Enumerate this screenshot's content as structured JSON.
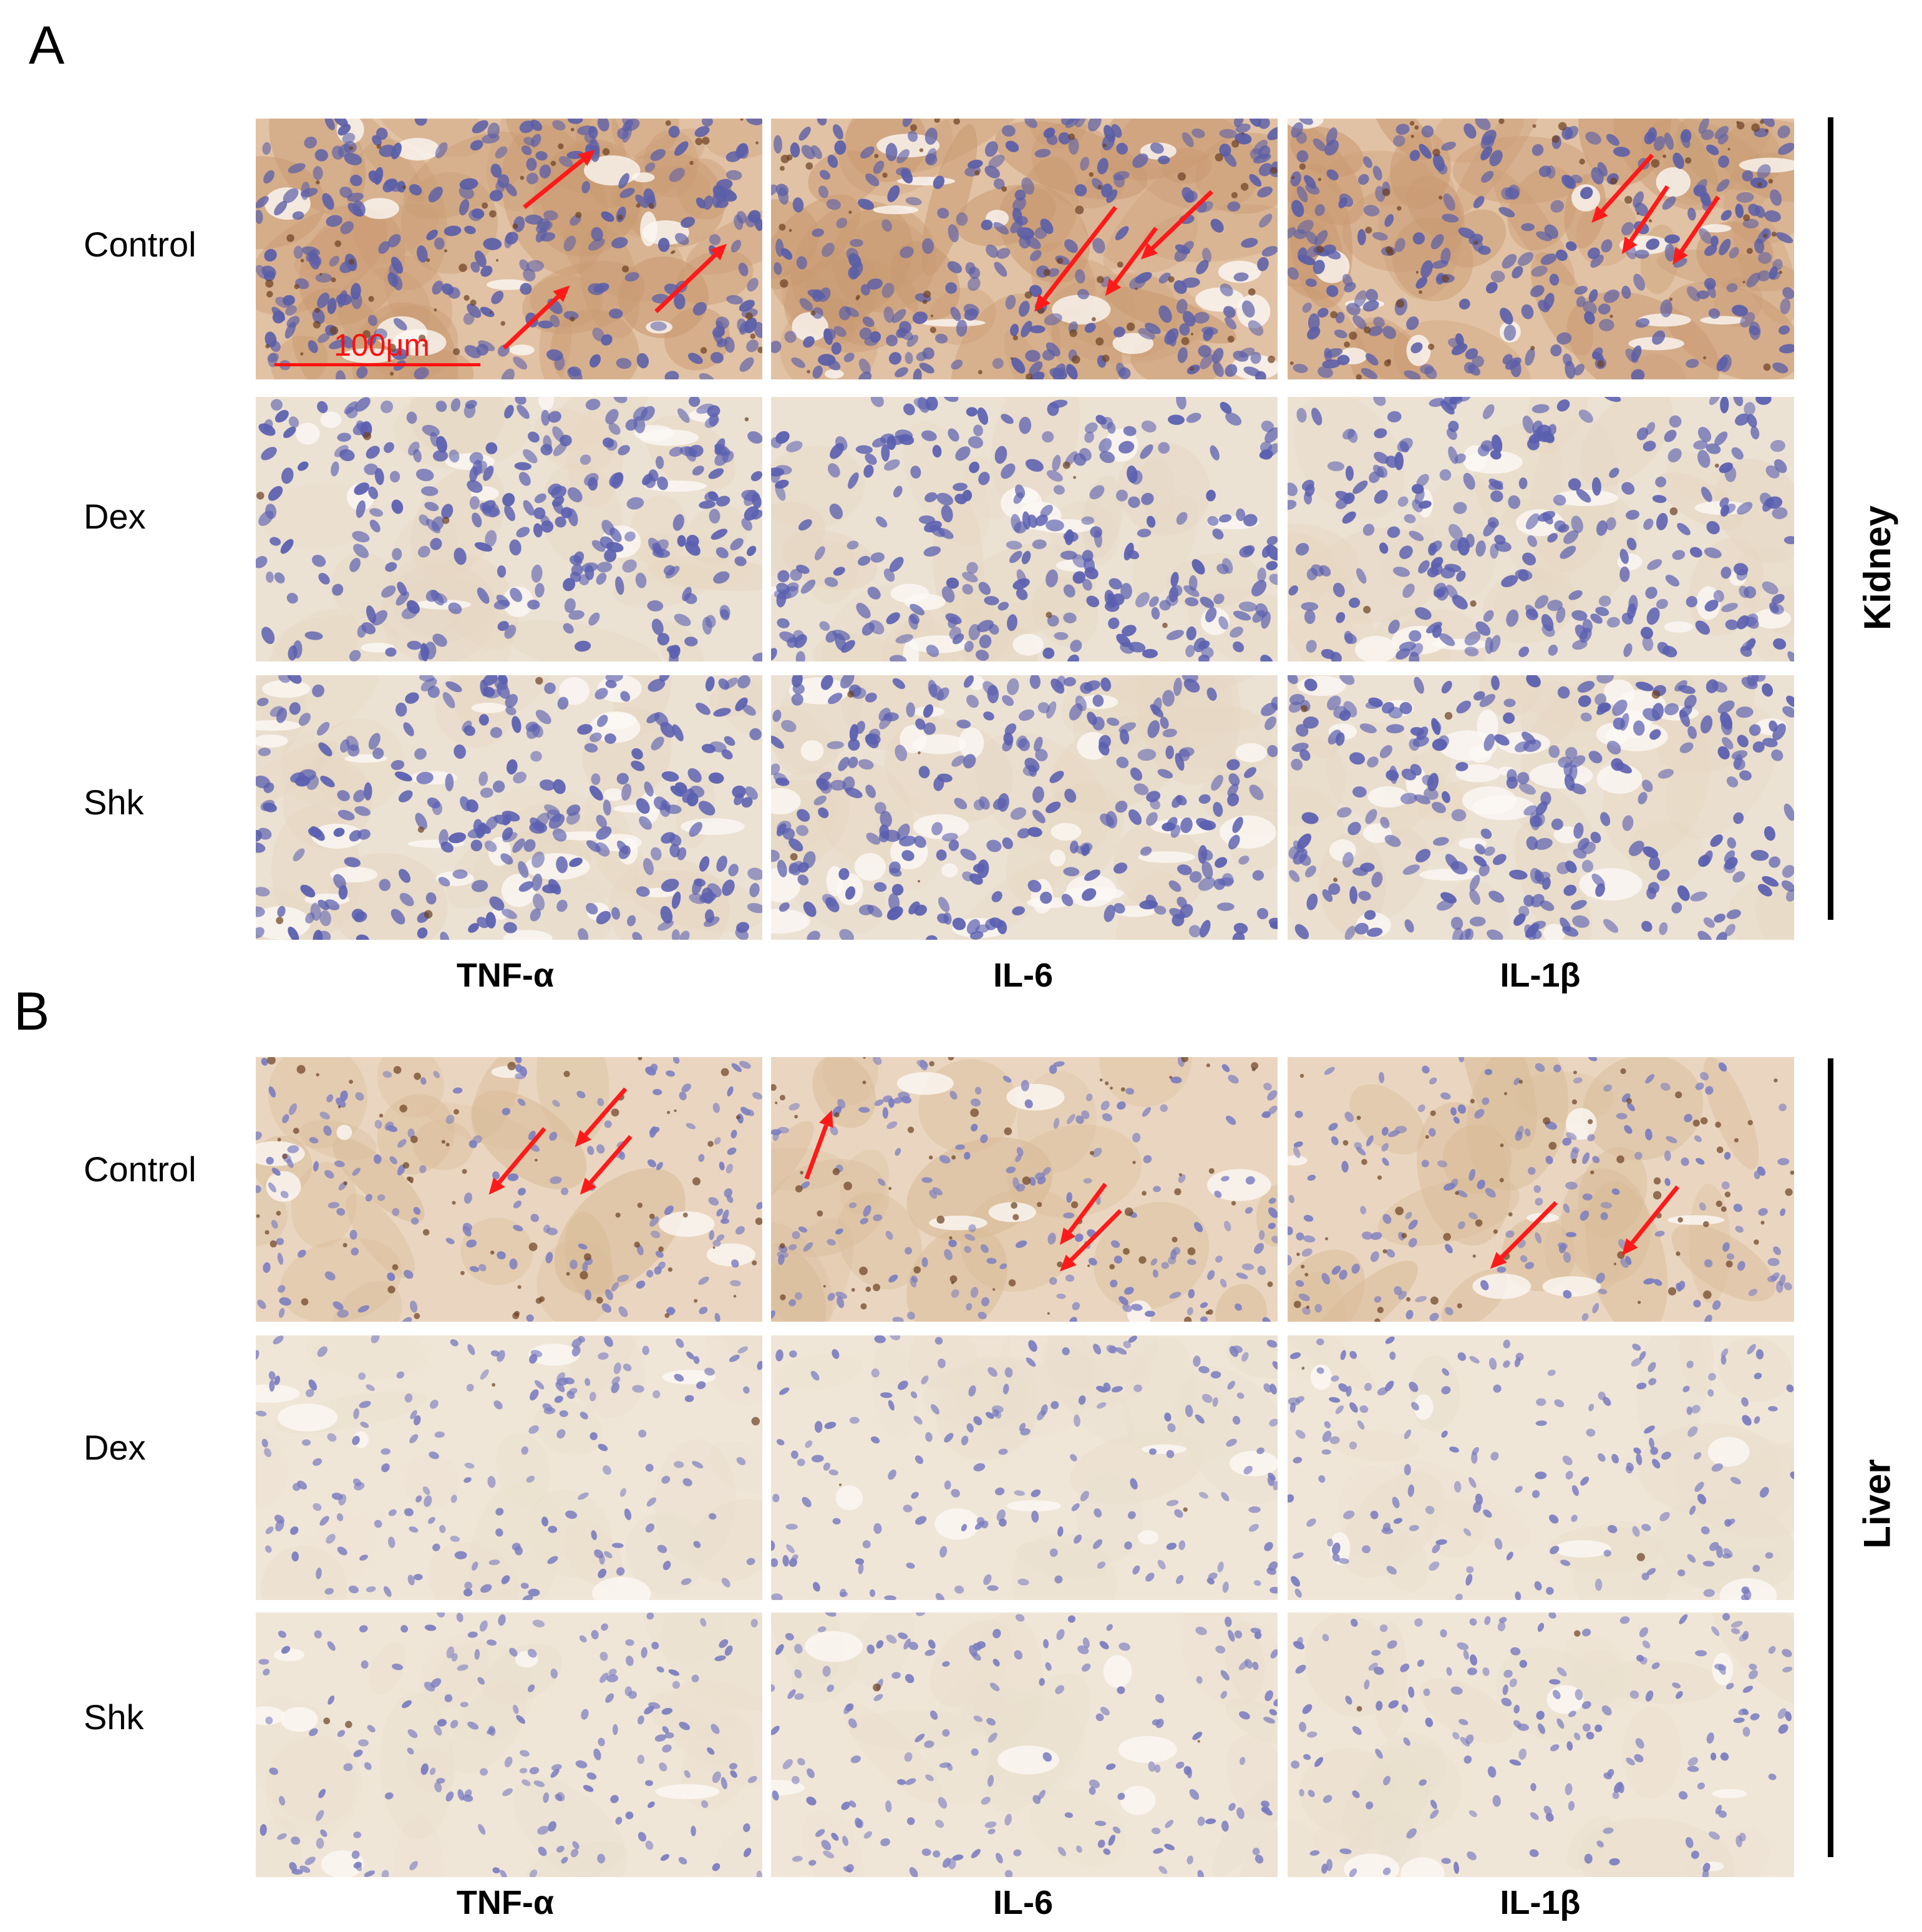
{
  "panels": [
    {
      "letter": "A",
      "organ": "Kidney",
      "rows": [
        "Control",
        "Dex",
        "Shk"
      ],
      "columns": [
        "TNF-α",
        "IL-6",
        "IL-1β"
      ],
      "scale_bar_label": "100μm"
    },
    {
      "letter": "B",
      "organ": "Liver",
      "rows": [
        "Control",
        "Dex",
        "Shk"
      ],
      "columns": [
        "TNF-α",
        "IL-6",
        "IL-1β"
      ]
    }
  ],
  "colors": {
    "arrow": "#ff1a1a",
    "nucleus": "#5a5fb0",
    "kidney_control_bg": "#e2c2a4",
    "tissue_bg": "#ece2d4",
    "liver_bg": "#f0e6d8"
  }
}
